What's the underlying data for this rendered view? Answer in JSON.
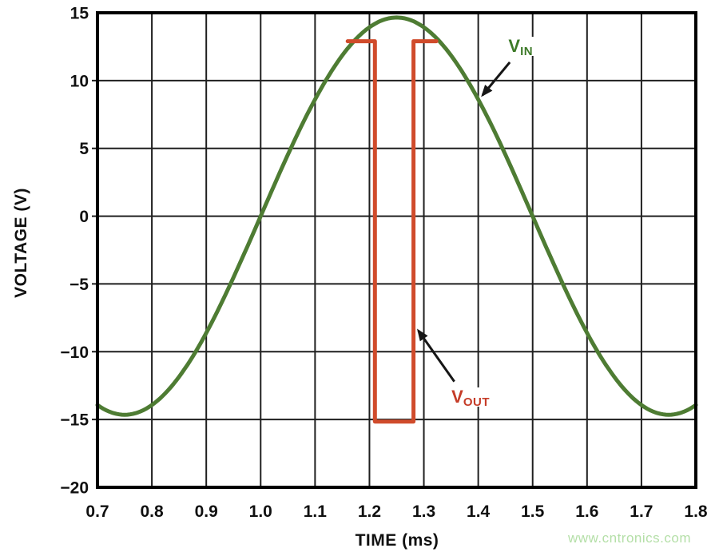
{
  "chart_data": {
    "type": "line",
    "title": "",
    "xlabel": "TIME (ms)",
    "ylabel": "VOLTAGE (V)",
    "xlim": [
      0.7,
      1.8
    ],
    "ylim": [
      -20,
      15
    ],
    "x_ticks": [
      0.7,
      0.8,
      0.9,
      1.0,
      1.1,
      1.2,
      1.3,
      1.4,
      1.5,
      1.6,
      1.7,
      1.8
    ],
    "x_tick_labels": [
      "0.7",
      "0.8",
      "0.9",
      "1.0",
      "1.1",
      "1.2",
      "1.3",
      "1.4",
      "1.5",
      "1.6",
      "1.7",
      "1.8"
    ],
    "y_ticks": [
      15,
      10,
      5,
      0,
      -5,
      -10,
      -15,
      -20
    ],
    "y_tick_labels": [
      "15",
      "10",
      "5",
      "0",
      "−5",
      "−10",
      "−15",
      "−20"
    ],
    "grid": true,
    "legend_position": "inline-annotations",
    "series": [
      {
        "name": "VIN",
        "kind": "sine",
        "color": "#4e7c33",
        "stroke_px": 5,
        "amplitude_v": 14.65,
        "period_ms": 1.0,
        "rising_zero_crossing_ms": 1.0,
        "peak": {
          "t_ms": 1.25,
          "v": 14.65
        },
        "trough": {
          "t_ms": 0.75,
          "v": -14.65
        },
        "zero_crossings_ms": [
          1.0,
          1.5
        ]
      },
      {
        "name": "VOUT",
        "kind": "polyline",
        "color": "#d04b2b",
        "stroke_px": 5,
        "points_t_v": [
          [
            1.16,
            12.9
          ],
          [
            1.21,
            12.9
          ],
          [
            1.21,
            -15.15
          ],
          [
            1.281,
            -15.15
          ],
          [
            1.281,
            12.9
          ],
          [
            1.323,
            12.9
          ]
        ]
      }
    ],
    "annotations": [
      {
        "id": "vin",
        "text": "V",
        "sub": "IN",
        "color": "#3d7a28",
        "label_t": 1.478,
        "label_v": 12.5,
        "arrow_from_t": 1.458,
        "arrow_from_v": 11.35,
        "arrow_to_t": 1.408,
        "arrow_to_v": 8.93
      },
      {
        "id": "vout",
        "text": "V",
        "sub": "OUT",
        "color": "#c53c28",
        "label_t": 1.386,
        "label_v": -13.35,
        "arrow_from_t": 1.356,
        "arrow_from_v": -12.2,
        "arrow_to_t": 1.29,
        "arrow_to_v": -8.45
      }
    ]
  },
  "watermark": {
    "text": "www.cntronics.com",
    "color": "#b4dfa7"
  }
}
